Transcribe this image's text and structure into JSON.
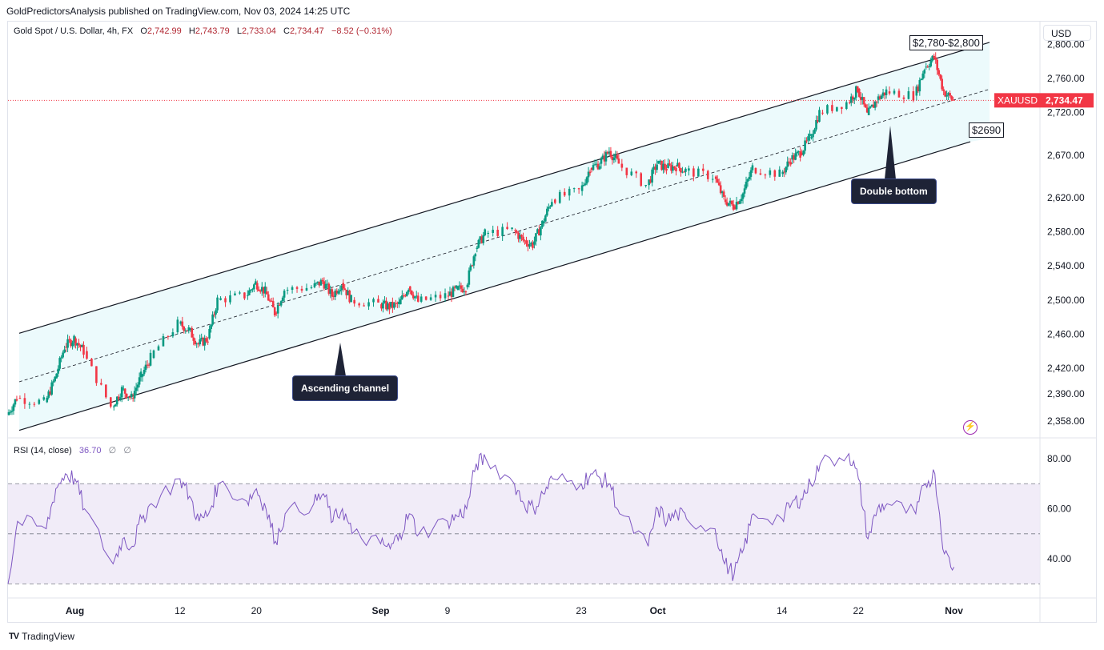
{
  "header": {
    "publisher_line": "GoldPredictorsAnalysis published on TradingView.com, Nov 03, 2024 14:25 UTC"
  },
  "legend": {
    "symbol": "Gold Spot / U.S. Dollar, 4h, FX",
    "o_label": "O",
    "o": "2,742.99",
    "h_label": "H",
    "h": "2,743.79",
    "l_label": "L",
    "l": "2,733.04",
    "c_label": "C",
    "c": "2,734.47",
    "change": "−8.52 (−0.31%)"
  },
  "currency": "USD",
  "price_tag": {
    "symbol": "XAUUSD",
    "price": "2,734.47"
  },
  "annotations": {
    "top_box": "$2,780-$2,800",
    "low_box": "$2690",
    "channel_label": "Ascending channel",
    "double_bottom_label": "Double bottom"
  },
  "rsi_legend": {
    "name": "RSI (14, close)",
    "value": "36.70",
    "z1": "∅",
    "z2": "∅"
  },
  "footer": {
    "logo": "TV",
    "brand": "TradingView"
  },
  "colors": {
    "up": "#089981",
    "down": "#f23645",
    "channel_fill": "#e0f7fa",
    "rsi_line": "#7e57c2",
    "rsi_band": "#ede7f6",
    "price_tag": "#f23645"
  },
  "icons": {
    "flash": "lightning-bolt-icon"
  },
  "chart_data": [
    {
      "type": "candlestick",
      "title": "Gold Spot / U.S. Dollar, 4h, FX",
      "ylabel": "",
      "xlabel": "",
      "y_ticks": [
        "2,358.00",
        "2,390.00",
        "2,420.00",
        "2,460.00",
        "2,500.00",
        "2,540.00",
        "2,580.00",
        "2,620.00",
        "2,670.00",
        "2,720.00",
        "2,760.00",
        "2,800.00"
      ],
      "y_tick_values": [
        2358,
        2390,
        2420,
        2460,
        2500,
        2540,
        2580,
        2620,
        2670,
        2720,
        2760,
        2800
      ],
      "x_ticks": [
        "Aug",
        "12",
        "20",
        "Sep",
        "9",
        "23",
        "Oct",
        "14",
        "22",
        "Nov"
      ],
      "x_tick_dates": [
        "2024-08-01",
        "2024-08-12",
        "2024-08-20",
        "2024-09-02",
        "2024-09-09",
        "2024-09-23",
        "2024-10-01",
        "2024-10-14",
        "2024-10-22",
        "2024-11-01"
      ],
      "x_range": [
        "2024-07-25",
        "2024-11-10"
      ],
      "close_path": [
        [
          "2024-07-25",
          2365
        ],
        [
          "2024-07-26",
          2385
        ],
        [
          "2024-07-29",
          2380
        ],
        [
          "2024-07-30",
          2408
        ],
        [
          "2024-07-31",
          2445
        ],
        [
          "2024-08-01",
          2455
        ],
        [
          "2024-08-02",
          2440
        ],
        [
          "2024-08-05",
          2375
        ],
        [
          "2024-08-06",
          2395
        ],
        [
          "2024-08-07",
          2385
        ],
        [
          "2024-08-08",
          2410
        ],
        [
          "2024-08-09",
          2432
        ],
        [
          "2024-08-12",
          2472
        ],
        [
          "2024-08-13",
          2465
        ],
        [
          "2024-08-14",
          2448
        ],
        [
          "2024-08-15",
          2455
        ],
        [
          "2024-08-16",
          2500
        ],
        [
          "2024-08-19",
          2505
        ],
        [
          "2024-08-20",
          2520
        ],
        [
          "2024-08-21",
          2510
        ],
        [
          "2024-08-22",
          2485
        ],
        [
          "2024-08-23",
          2512
        ],
        [
          "2024-08-26",
          2515
        ],
        [
          "2024-08-27",
          2522
        ],
        [
          "2024-08-28",
          2505
        ],
        [
          "2024-08-29",
          2520
        ],
        [
          "2024-08-30",
          2500
        ],
        [
          "2024-09-02",
          2495
        ],
        [
          "2024-09-03",
          2492
        ],
        [
          "2024-09-04",
          2495
        ],
        [
          "2024-09-05",
          2516
        ],
        [
          "2024-09-06",
          2498
        ],
        [
          "2024-09-09",
          2505
        ],
        [
          "2024-09-10",
          2512
        ],
        [
          "2024-09-11",
          2515
        ],
        [
          "2024-09-12",
          2560
        ],
        [
          "2024-09-13",
          2578
        ],
        [
          "2024-09-16",
          2582
        ],
        [
          "2024-09-17",
          2570
        ],
        [
          "2024-09-18",
          2565
        ],
        [
          "2024-09-19",
          2590
        ],
        [
          "2024-09-20",
          2618
        ],
        [
          "2024-09-23",
          2628
        ],
        [
          "2024-09-24",
          2655
        ],
        [
          "2024-09-25",
          2660
        ],
        [
          "2024-09-26",
          2675
        ],
        [
          "2024-09-27",
          2660
        ],
        [
          "2024-09-30",
          2635
        ],
        [
          "2024-10-01",
          2660
        ],
        [
          "2024-10-02",
          2655
        ],
        [
          "2024-10-03",
          2657
        ],
        [
          "2024-10-04",
          2652
        ],
        [
          "2024-10-07",
          2645
        ],
        [
          "2024-10-08",
          2618
        ],
        [
          "2024-10-09",
          2610
        ],
        [
          "2024-10-10",
          2625
        ],
        [
          "2024-10-11",
          2655
        ],
        [
          "2024-10-14",
          2648
        ],
        [
          "2024-10-15",
          2665
        ],
        [
          "2024-10-16",
          2673
        ],
        [
          "2024-10-17",
          2690
        ],
        [
          "2024-10-18",
          2720
        ],
        [
          "2024-10-21",
          2732
        ],
        [
          "2024-10-22",
          2748
        ],
        [
          "2024-10-23",
          2717
        ],
        [
          "2024-10-24",
          2735
        ],
        [
          "2024-10-25",
          2745
        ],
        [
          "2024-10-28",
          2740
        ],
        [
          "2024-10-29",
          2773
        ],
        [
          "2024-10-30",
          2785
        ],
        [
          "2024-10-31",
          2745
        ],
        [
          "2024-11-01",
          2734.47
        ]
      ],
      "channel": {
        "upper": [
          [
            "2024-07-25",
            2457
          ],
          [
            "2024-11-01",
            2790
          ]
        ],
        "lower": [
          [
            "2024-07-25",
            2343
          ],
          [
            "2024-11-01",
            2680
          ]
        ],
        "mid": [
          [
            "2024-07-25",
            2400
          ],
          [
            "2024-11-01",
            2735
          ]
        ]
      },
      "last_price": 2734.47
    },
    {
      "type": "line",
      "title": "RSI (14, close)",
      "y_ticks": [
        "40.00",
        "60.00",
        "80.00"
      ],
      "y_tick_values": [
        40,
        60,
        80
      ],
      "bands": {
        "upper": 70,
        "middle": 50,
        "lower": 30
      },
      "x": [
        "2024-07-25",
        "2024-07-26",
        "2024-07-29",
        "2024-07-30",
        "2024-07-31",
        "2024-08-01",
        "2024-08-02",
        "2024-08-05",
        "2024-08-06",
        "2024-08-07",
        "2024-08-08",
        "2024-08-09",
        "2024-08-12",
        "2024-08-13",
        "2024-08-14",
        "2024-08-15",
        "2024-08-16",
        "2024-08-19",
        "2024-08-20",
        "2024-08-21",
        "2024-08-22",
        "2024-08-23",
        "2024-08-26",
        "2024-08-27",
        "2024-08-28",
        "2024-08-29",
        "2024-08-30",
        "2024-09-02",
        "2024-09-03",
        "2024-09-04",
        "2024-09-05",
        "2024-09-06",
        "2024-09-09",
        "2024-09-10",
        "2024-09-11",
        "2024-09-12",
        "2024-09-13",
        "2024-09-16",
        "2024-09-17",
        "2024-09-18",
        "2024-09-19",
        "2024-09-20",
        "2024-09-23",
        "2024-09-24",
        "2024-09-25",
        "2024-09-26",
        "2024-09-27",
        "2024-09-30",
        "2024-10-01",
        "2024-10-02",
        "2024-10-03",
        "2024-10-04",
        "2024-10-07",
        "2024-10-08",
        "2024-10-09",
        "2024-10-10",
        "2024-10-11",
        "2024-10-14",
        "2024-10-15",
        "2024-10-16",
        "2024-10-17",
        "2024-10-18",
        "2024-10-21",
        "2024-10-22",
        "2024-10-23",
        "2024-10-24",
        "2024-10-25",
        "2024-10-28",
        "2024-10-29",
        "2024-10-30",
        "2024-10-31",
        "2024-11-01"
      ],
      "values": [
        30,
        55,
        52,
        68,
        74,
        72,
        60,
        38,
        48,
        45,
        56,
        62,
        72,
        65,
        55,
        58,
        70,
        63,
        68,
        60,
        47,
        58,
        62,
        66,
        55,
        60,
        50,
        46,
        44,
        50,
        58,
        50,
        55,
        57,
        60,
        78,
        80,
        70,
        62,
        60,
        66,
        72,
        70,
        74,
        72,
        70,
        58,
        45,
        60,
        55,
        58,
        56,
        52,
        38,
        34,
        44,
        58,
        56,
        62,
        64,
        70,
        78,
        82,
        72,
        48,
        60,
        62,
        58,
        70,
        74,
        42,
        36.7
      ],
      "series_name": "RSI (14, close)"
    }
  ]
}
